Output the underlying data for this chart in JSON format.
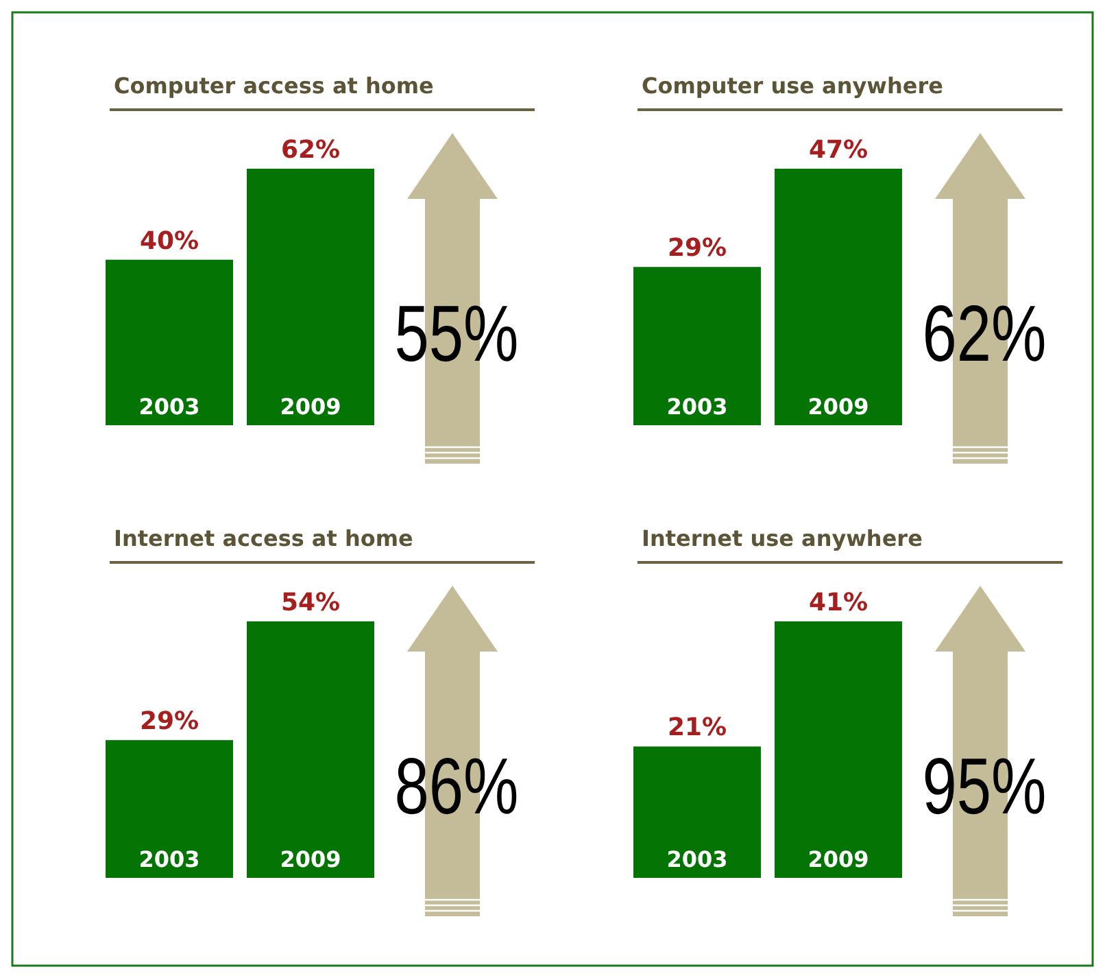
{
  "chart_data": [
    {
      "type": "bar",
      "title": "Computer access at home",
      "categories": [
        "2003",
        "2009"
      ],
      "values": [
        40,
        62
      ],
      "value_labels": [
        "40%",
        "62%"
      ],
      "color": "#047404",
      "annotations": [
        "55%"
      ]
    },
    {
      "type": "bar",
      "title": "Computer use anywhere",
      "categories": [
        "2003",
        "2009"
      ],
      "values": [
        29,
        47
      ],
      "value_labels": [
        "29%",
        "47%"
      ],
      "color": "#047404",
      "annotations": [
        "62%"
      ]
    },
    {
      "type": "bar",
      "title": "Internet access at home",
      "categories": [
        "2003",
        "2009"
      ],
      "values": [
        29,
        54
      ],
      "value_labels": [
        "29%",
        "54%"
      ],
      "color": "#047404",
      "annotations": [
        "86%"
      ]
    },
    {
      "type": "bar",
      "title": "Internet use anywhere",
      "categories": [
        "2003",
        "2009"
      ],
      "values": [
        21,
        41
      ],
      "value_labels": [
        "21%",
        "41%"
      ],
      "color": "#047404",
      "annotations": [
        "95%"
      ]
    }
  ]
}
